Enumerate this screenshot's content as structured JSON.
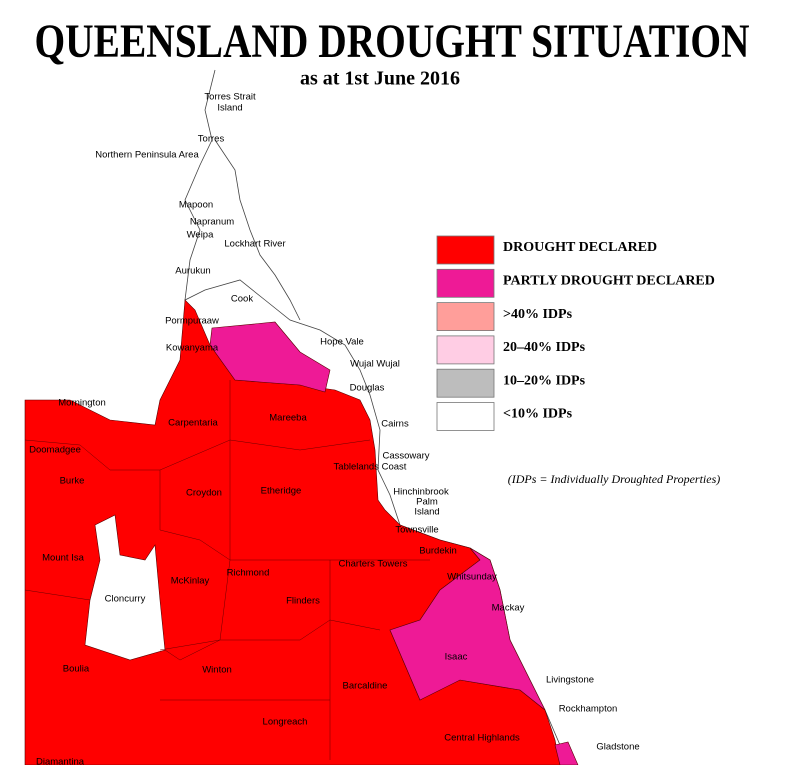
{
  "header": {
    "title": "QUEENSLAND DROUGHT SITUATION",
    "subtitle": "as at 1st June 2016"
  },
  "legend": {
    "items": [
      {
        "label": "DROUGHT DECLARED",
        "color": "#ff0000"
      },
      {
        "label": "PARTLY DROUGHT DECLARED",
        "color": "#ee1a96"
      },
      {
        "label": ">40% IDPs",
        "color": "#ff9e9a"
      },
      {
        "label": "20–40% IDPs",
        "color": "#ffcde4"
      },
      {
        "label": "10–20% IDPs",
        "color": "#bdbdbd"
      },
      {
        "label": "<10% IDPs",
        "color": "#ffffff"
      }
    ],
    "note": "(IDPs = Individually Droughted Properties)"
  },
  "places": [
    "Torres Strait",
    "Island",
    "Torres",
    "Northern Peninsula Area",
    "Mapoon",
    "Napranum",
    "Weipa",
    "Lockhart River",
    "Aurukun",
    "Cook",
    "Pormpuraaw",
    "Kowanyama",
    "Hope Vale",
    "Wujal Wujal",
    "Douglas",
    "Mornington",
    "Carpentaria",
    "Mareeba",
    "Cairns",
    "Doomadgee",
    "Cassowary",
    "Tablelands Coast",
    "Burke",
    "Croydon",
    "Etheridge",
    "Hinchinbrook",
    "Palm",
    "Island",
    "Townsville",
    "Burdekin",
    "Mount Isa",
    "Whitsunday",
    "Charters Towers",
    "Richmond",
    "McKinlay",
    "Cloncurry",
    "Flinders",
    "Mackay",
    "Isaac",
    "Boulia",
    "Winton",
    "Livingstone",
    "Barcaldine",
    "Rockhampton",
    "Longreach",
    "Central Highlands",
    "Gladstone",
    "Diamantina"
  ]
}
